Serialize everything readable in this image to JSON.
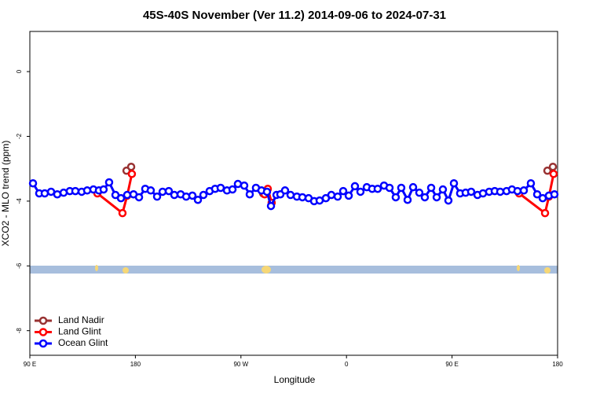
{
  "chart_data": {
    "type": "line",
    "title": "45S-40S November (Ver 11.2)   2014-09-06 to 2024-07-31",
    "x_label": "Longitude",
    "y_label": "XCO2 - MLO trend (ppm)",
    "xlim": [
      90,
      540
    ],
    "xticks": [
      {
        "value": 90,
        "label": "90 E"
      },
      {
        "value": 180,
        "label": "180"
      },
      {
        "value": 270,
        "label": "90 W"
      },
      {
        "value": 360,
        "label": "0"
      },
      {
        "value": 450,
        "label": "90 E"
      },
      {
        "value": 540,
        "label": "180"
      }
    ],
    "ylim": [
      -8.76,
      1.24
    ],
    "yticks": [
      0,
      -2,
      -4,
      -6,
      -8
    ],
    "legend": "bottom-left",
    "series": [
      {
        "name": "Land Nadir",
        "color": "#983232",
        "x": [
          172.4,
          176.4,
          null,
          288.9,
          null,
          531.3,
          536.0
        ],
        "values": [
          -3.06,
          -2.94,
          null,
          -3.76,
          null,
          -3.06,
          -2.94
        ]
      },
      {
        "name": "Land Glint",
        "color": "#ff0000",
        "x": [
          147.6,
          169.0,
          173.0,
          177.0,
          null,
          290.2,
          292.9,
          296.2,
          null,
          507.2,
          529.3,
          532.6,
          536.6
        ],
        "values": [
          -3.76,
          -4.37,
          -3.83,
          -3.16,
          null,
          -3.79,
          -3.62,
          -4.05,
          null,
          -3.76,
          -4.37,
          -3.86,
          -3.16
        ]
      },
      {
        "name": "Ocean Glint",
        "color": "#0000ff",
        "x": [
          92.7,
          98.0,
          102.7,
          108.1,
          113.4,
          118.8,
          124.1,
          128.8,
          134.2,
          138.9,
          144.2,
          148.9,
          152.9,
          157.6,
          163.0,
          167.7,
          173.0,
          178.4,
          183.1,
          188.4,
          193.1,
          198.5,
          203.2,
          208.5,
          213.2,
          218.6,
          223.3,
          228.6,
          233.3,
          238.0,
          243.3,
          248.0,
          252.7,
          258.1,
          262.8,
          267.4,
          272.8,
          277.5,
          282.8,
          287.5,
          292.2,
          295.6,
          300.3,
          303.6,
          307.6,
          312.3,
          317.7,
          322.4,
          327.7,
          332.4,
          337.1,
          342.4,
          347.1,
          352.5,
          357.2,
          361.9,
          367.2,
          371.9,
          377.3,
          381.9,
          386.6,
          392.0,
          396.7,
          402.0,
          406.7,
          412.1,
          416.8,
          422.1,
          426.8,
          432.2,
          436.9,
          442.2,
          446.9,
          451.6,
          456.9,
          461.6,
          466.3,
          471.7,
          476.4,
          481.7,
          486.4,
          491.1,
          496.5,
          501.1,
          505.8,
          511.2,
          517.2,
          522.6,
          527.3,
          532.6,
          537.3
        ],
        "values": [
          -3.45,
          -3.76,
          -3.76,
          -3.71,
          -3.79,
          -3.74,
          -3.69,
          -3.69,
          -3.71,
          -3.67,
          -3.64,
          -3.67,
          -3.64,
          -3.42,
          -3.81,
          -3.91,
          -3.81,
          -3.79,
          -3.88,
          -3.62,
          -3.67,
          -3.86,
          -3.71,
          -3.69,
          -3.81,
          -3.79,
          -3.86,
          -3.83,
          -3.96,
          -3.81,
          -3.69,
          -3.62,
          -3.59,
          -3.67,
          -3.64,
          -3.47,
          -3.52,
          -3.79,
          -3.59,
          -3.67,
          -3.71,
          -4.15,
          -3.81,
          -3.79,
          -3.67,
          -3.81,
          -3.86,
          -3.88,
          -3.91,
          -4.0,
          -3.98,
          -3.91,
          -3.81,
          -3.86,
          -3.69,
          -3.83,
          -3.54,
          -3.71,
          -3.57,
          -3.62,
          -3.62,
          -3.52,
          -3.59,
          -3.88,
          -3.59,
          -3.96,
          -3.57,
          -3.74,
          -3.88,
          -3.59,
          -3.88,
          -3.64,
          -3.98,
          -3.45,
          -3.76,
          -3.74,
          -3.71,
          -3.81,
          -3.76,
          -3.71,
          -3.69,
          -3.71,
          -3.69,
          -3.64,
          -3.69,
          -3.67,
          -3.45,
          -3.79,
          -3.91,
          -3.83,
          -3.79
        ]
      }
    ]
  }
}
